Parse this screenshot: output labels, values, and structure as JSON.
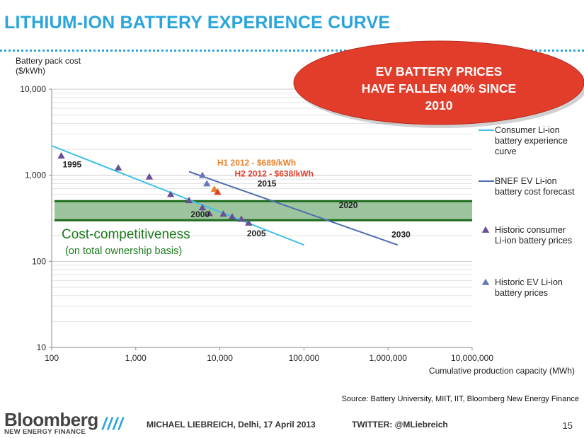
{
  "slide": {
    "title": "LITHIUM-ION BATTERY EXPERIENCE CURVE",
    "callout_lines": [
      "EV BATTERY PRICES",
      "HAVE FALLEN 40% SINCE",
      "2010"
    ],
    "source": "Source: Battery University, MIIT, IIT, Bloomberg New Energy Finance"
  },
  "footer": {
    "brand_name": "Bloomberg",
    "brand_sub": "NEW ENERGY FINANCE",
    "slashes": "////",
    "author": "MICHAEL LIEBREICH, Delhi, 17 April 2013",
    "twitter": "TWITTER: @MLiebreich",
    "page": "15"
  },
  "colors": {
    "title": "#2aa5dc",
    "consumer_curve": "#3ec1e8",
    "bnef_forecast": "#4f6fb0",
    "consumer_markers": "#6a4f96",
    "ev_markers": "#6678b8",
    "band_fill": "#8cbb8c",
    "band_border": "#1c6b1c",
    "callout": "#e23d2b",
    "h1_label": "#e8822a",
    "h2_label": "#e0402a"
  },
  "chart_data": {
    "type": "scatter",
    "xscale": "log",
    "yscale": "log",
    "xlim": [
      100,
      10000000
    ],
    "ylim": [
      10,
      10000
    ],
    "xticks": [
      100,
      1000,
      10000,
      100000,
      1000000,
      10000000
    ],
    "xtick_labels": [
      "100",
      "1,000",
      "10,000",
      "100,000",
      "1,000,000",
      "10,000,000"
    ],
    "yticks": [
      10,
      100,
      1000,
      10000
    ],
    "ytick_labels": [
      "10",
      "100",
      "1,000",
      "10,000"
    ],
    "xlabel": "Cumulative production capacity (MWh)",
    "ylabel_lines": [
      "Battery pack cost",
      "($/kWh)"
    ],
    "grid": true,
    "legend_position": "right",
    "series": [
      {
        "name": "Consumer Li-ion battery experience curve",
        "legend_lines": [
          "Consumer Li-ion",
          "battery experience",
          "curve"
        ],
        "kind": "line",
        "x": [
          100,
          100000
        ],
        "y": [
          2200,
          155
        ]
      },
      {
        "name": "BNEF EV Li-ion battery cost forecast",
        "legend_lines": [
          "BNEF EV Li-ion",
          "battery cost forecast"
        ],
        "kind": "line",
        "x": [
          4300,
          1300000
        ],
        "y": [
          1100,
          155
        ]
      },
      {
        "name": "Historic consumer Li-ion battery prices",
        "legend_lines": [
          "Historic consumer",
          "Li-ion battery prices"
        ],
        "kind": "marker",
        "x": [
          130,
          620,
          1450,
          2600,
          4300,
          6200,
          7500,
          11000,
          14000,
          18000,
          22000
        ],
        "y": [
          1680,
          1220,
          960,
          600,
          510,
          420,
          360,
          355,
          330,
          310,
          280
        ]
      },
      {
        "name": "Historic EV Li-ion battery prices",
        "legend_lines": [
          "Historic EV Li-ion",
          "battery prices"
        ],
        "kind": "marker",
        "x": [
          6200,
          7000
        ],
        "y": [
          1000,
          800
        ]
      },
      {
        "kind": "marker",
        "x": [
          8600
        ],
        "y": [
          689
        ]
      },
      {
        "kind": "marker",
        "x": [
          9400
        ],
        "y": [
          638
        ]
      }
    ],
    "band": {
      "label": "Cost-competitiveness",
      "sublabel": "(on total ownership basis)",
      "y": [
        300,
        500
      ]
    },
    "annotations": [
      {
        "text": "1995",
        "x": 135,
        "y": 1230
      },
      {
        "text": "2000",
        "x": 4500,
        "y": 325
      },
      {
        "text": "2005",
        "x": 21000,
        "y": 195
      },
      {
        "text": "2015",
        "x": 28000,
        "y": 740
      },
      {
        "text": "2020",
        "x": 260000,
        "y": 415
      },
      {
        "text": "2030",
        "x": 1100000,
        "y": 190
      },
      {
        "text": "H1 2012 - $689/kWh",
        "x": 9300,
        "y": 1300,
        "color": "h1_label"
      },
      {
        "text": "H2 2012 - $638/kWh",
        "x": 15000,
        "y": 970,
        "color": "h2_label"
      }
    ]
  }
}
